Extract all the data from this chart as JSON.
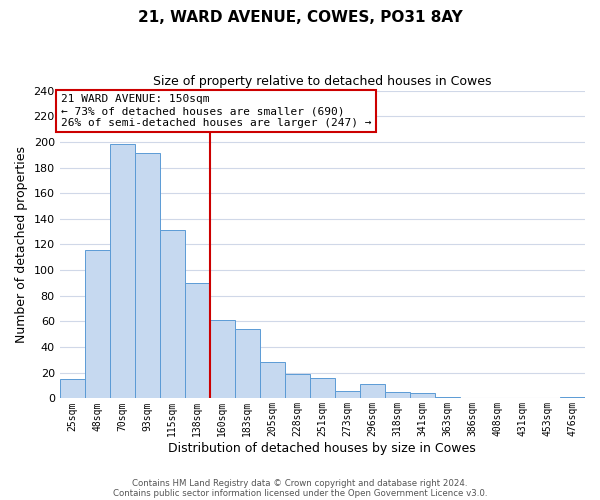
{
  "title": "21, WARD AVENUE, COWES, PO31 8AY",
  "subtitle": "Size of property relative to detached houses in Cowes",
  "xlabel": "Distribution of detached houses by size in Cowes",
  "ylabel": "Number of detached properties",
  "bar_labels": [
    "25sqm",
    "48sqm",
    "70sqm",
    "93sqm",
    "115sqm",
    "138sqm",
    "160sqm",
    "183sqm",
    "205sqm",
    "228sqm",
    "251sqm",
    "273sqm",
    "296sqm",
    "318sqm",
    "341sqm",
    "363sqm",
    "386sqm",
    "408sqm",
    "431sqm",
    "453sqm",
    "476sqm"
  ],
  "bar_values": [
    15,
    116,
    198,
    191,
    131,
    90,
    61,
    54,
    28,
    19,
    16,
    6,
    11,
    5,
    4,
    1,
    0,
    0,
    0,
    0,
    1
  ],
  "bar_color": "#c6d9f0",
  "bar_edge_color": "#5b9bd5",
  "ylim": [
    0,
    240
  ],
  "yticks": [
    0,
    20,
    40,
    60,
    80,
    100,
    120,
    140,
    160,
    180,
    200,
    220,
    240
  ],
  "vline_x": 5.5,
  "vline_color": "#cc0000",
  "annotation_title": "21 WARD AVENUE: 150sqm",
  "annotation_line1": "← 73% of detached houses are smaller (690)",
  "annotation_line2": "26% of semi-detached houses are larger (247) →",
  "annotation_box_color": "#cc0000",
  "footer_line1": "Contains HM Land Registry data © Crown copyright and database right 2024.",
  "footer_line2": "Contains public sector information licensed under the Open Government Licence v3.0.",
  "background_color": "#ffffff",
  "grid_color": "#d0d8e8"
}
